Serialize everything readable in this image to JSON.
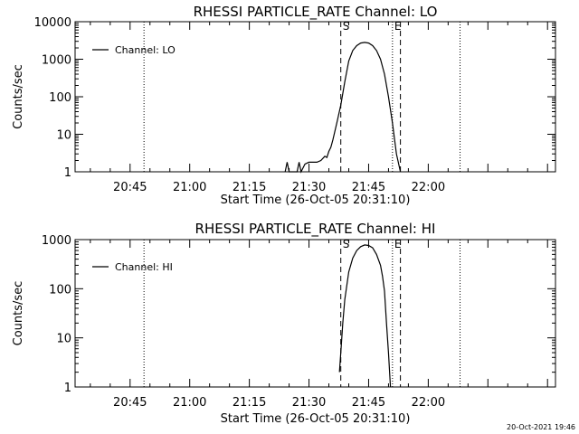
{
  "chart_data": [
    {
      "type": "line",
      "title": "RHESSI PARTICLE_RATE Channel: LO",
      "xlabel": "Start Time (26-Oct-05 20:31:10)",
      "ylabel": "Counts/sec",
      "y_scale": "log",
      "ylim": [
        1,
        10000
      ],
      "y_ticks": [
        1,
        10,
        100,
        1000,
        10000
      ],
      "y_tick_labels": [
        "1",
        "10",
        "100",
        "1000",
        "10000"
      ],
      "xlim": [
        "20:31:10",
        "22:32:00"
      ],
      "x_ticks": [
        "20:45",
        "21:00",
        "21:15",
        "21:30",
        "21:45",
        "22:00"
      ],
      "legend": {
        "position": "top-left",
        "entries": [
          "Channel: LO"
        ]
      },
      "markers": [
        {
          "label": "",
          "x": "20:48:30",
          "style": "dotted"
        },
        {
          "label": "S",
          "x": "21:38:00",
          "style": "dashed"
        },
        {
          "label": "E",
          "x": "21:51:00",
          "style": "dotted"
        },
        {
          "label": "",
          "x": "21:53:00",
          "style": "dashed"
        },
        {
          "label": "",
          "x": "22:08:00",
          "style": "dotted"
        }
      ],
      "series": [
        {
          "name": "Channel: LO",
          "x": [
            "21:24:00",
            "21:24:30",
            "21:25:00",
            "21:27:00",
            "21:27:30",
            "21:28:00",
            "21:29:00",
            "21:30:00",
            "21:31:00",
            "21:32:00",
            "21:33:00",
            "21:34:00",
            "21:34:30",
            "21:35:00",
            "21:35:30",
            "21:36:00",
            "21:37:00",
            "21:38:00",
            "21:39:00",
            "21:40:00",
            "21:41:00",
            "21:42:00",
            "21:43:00",
            "21:44:00",
            "21:45:00",
            "21:46:00",
            "21:47:00",
            "21:48:00",
            "21:49:00",
            "21:50:00",
            "21:51:00",
            "21:52:00",
            "21:53:00"
          ],
          "values": [
            1,
            1.8,
            1,
            1,
            1.8,
            1,
            1.6,
            1.8,
            1.8,
            1.8,
            2,
            2.6,
            2.4,
            3.5,
            4.5,
            7,
            20,
            60,
            250,
            900,
            1700,
            2300,
            2700,
            2800,
            2700,
            2300,
            1700,
            1000,
            400,
            100,
            20,
            3,
            1
          ]
        }
      ]
    },
    {
      "type": "line",
      "title": "RHESSI PARTICLE_RATE Channel: HI",
      "xlabel": "Start Time (26-Oct-05 20:31:10)",
      "ylabel": "Counts/sec",
      "y_scale": "log",
      "ylim": [
        1,
        1000
      ],
      "y_ticks": [
        1,
        10,
        100,
        1000
      ],
      "y_tick_labels": [
        "1",
        "10",
        "100",
        "1000"
      ],
      "xlim": [
        "20:31:10",
        "22:32:00"
      ],
      "x_ticks": [
        "20:45",
        "21:00",
        "21:15",
        "21:30",
        "21:45",
        "22:00"
      ],
      "legend": {
        "position": "top-left",
        "entries": [
          "Channel: HI"
        ]
      },
      "markers": [
        {
          "label": "",
          "x": "20:48:30",
          "style": "dotted"
        },
        {
          "label": "S",
          "x": "21:38:00",
          "style": "dashed"
        },
        {
          "label": "E",
          "x": "21:51:00",
          "style": "dotted"
        },
        {
          "label": "",
          "x": "21:53:00",
          "style": "dashed"
        },
        {
          "label": "",
          "x": "22:08:00",
          "style": "dotted"
        }
      ],
      "series": [
        {
          "name": "Channel: HI",
          "x": [
            "21:37:40",
            "21:38:00",
            "21:38:30",
            "21:39:00",
            "21:40:00",
            "21:41:00",
            "21:42:00",
            "21:43:00",
            "21:44:00",
            "21:45:00",
            "21:46:00",
            "21:47:00",
            "21:48:00",
            "21:48:30",
            "21:49:00",
            "21:49:30",
            "21:50:00",
            "21:50:30"
          ],
          "values": [
            2,
            5,
            20,
            60,
            220,
            420,
            600,
            720,
            780,
            760,
            680,
            500,
            300,
            180,
            90,
            20,
            5,
            1
          ]
        }
      ]
    }
  ],
  "footer": {
    "timestamp": "20-Oct-2021 19:46"
  }
}
